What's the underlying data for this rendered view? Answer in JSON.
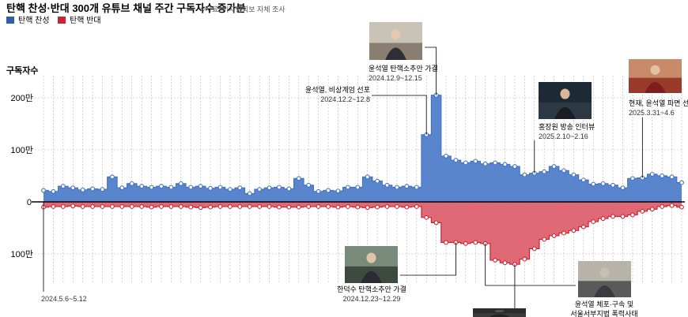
{
  "title": "탄핵 찬성·반대 300개 유튜브 채널 주간 구독자수 증가분",
  "source_note": "※자료: 기자협회보 자체 조사",
  "colors": {
    "pro": "#4472c4",
    "pro_fill": "#4f7ec9",
    "con": "#cc2233",
    "con_fill": "#d9505d"
  },
  "chart_data": {
    "type": "area",
    "title": "탄핵 찬성·반대 300개 유튜브 채널 주간 구독자수 증가분",
    "ylabel": "구독자수",
    "yticks": [
      {
        "value": 200,
        "label": "200만"
      },
      {
        "value": 100,
        "label": "100만"
      },
      {
        "value": 0,
        "label": "0"
      },
      {
        "value": -100,
        "label": "100만"
      }
    ],
    "ylim": [
      -130,
      230
    ],
    "unit": "만",
    "x_first_label": "2024.5.6~5.12",
    "legend": [
      {
        "name": "탄핵 찬성",
        "color": "#4472c4"
      },
      {
        "name": "탄핵 반대",
        "color": "#cc2233"
      }
    ],
    "series": [
      {
        "name": "탄핵 찬성",
        "values": [
          22,
          20,
          30,
          27,
          23,
          25,
          24,
          48,
          27,
          35,
          30,
          28,
          30,
          28,
          35,
          28,
          30,
          26,
          28,
          24,
          27,
          16,
          24,
          27,
          28,
          25,
          45,
          32,
          20,
          22,
          21,
          28,
          28,
          48,
          40,
          32,
          28,
          30,
          28,
          129,
          205,
          88,
          80,
          75,
          78,
          73,
          75,
          72,
          68,
          52,
          55,
          58,
          68,
          60,
          52,
          42,
          34,
          35,
          32,
          27,
          45,
          46,
          53,
          50,
          48,
          37
        ]
      },
      {
        "name": "탄핵 반대",
        "values": [
          -10,
          -9,
          -9,
          -8,
          -9,
          -9,
          -9,
          -9,
          -9,
          -9,
          -9,
          -10,
          -9,
          -9,
          -9,
          -10,
          -11,
          -10,
          -9,
          -9,
          -9,
          -9,
          -9,
          -9,
          -10,
          -10,
          -10,
          -9,
          -9,
          -9,
          -10,
          -9,
          -10,
          -11,
          -10,
          -9,
          -9,
          -10,
          -9,
          -30,
          -40,
          -78,
          -78,
          -80,
          -78,
          -80,
          -112,
          -117,
          -120,
          -110,
          -90,
          -72,
          -65,
          -60,
          -55,
          -48,
          -38,
          -32,
          -28,
          -28,
          -25,
          -18,
          -14,
          -9,
          -7,
          -10
        ]
      }
    ],
    "annotations": [
      {
        "title": "윤석열, 비상계엄 선포",
        "date": "2024.12.2~12.8",
        "index": 39,
        "series": 0,
        "photo": false
      },
      {
        "title": "윤석열 탄핵소추안 가결",
        "date": "2024.12.9~12.15",
        "index": 40,
        "series": 0,
        "photo": true
      },
      {
        "title": "홍장원 방송 인터뷰",
        "date": "2025.2.10~2.16",
        "index": 50,
        "series": 0,
        "photo": true
      },
      {
        "title": "현재, 윤석열 파면 선고",
        "date": "2025.3.31~4.6",
        "index": 61,
        "series": 0,
        "photo": true
      },
      {
        "title": "한덕수 탄핵소추안 가결",
        "date": "2024.12.23~12.29",
        "index": 42,
        "series": 1,
        "photo": true
      },
      {
        "title": "윤석열 체포·구속 및",
        "title2": "서울서부지법 폭력사태",
        "date": "",
        "index": 45,
        "series": 1,
        "photo": true
      }
    ]
  }
}
